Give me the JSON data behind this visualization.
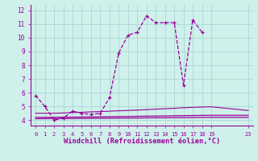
{
  "bg_color": "#cff0eb",
  "grid_color": "#aad8d4",
  "line_color": "#990099",
  "xlabel": "Windchill (Refroidissement éolien,°C)",
  "xlim": [
    -0.5,
    23.5
  ],
  "ylim": [
    3.6,
    12.4
  ],
  "xticks": [
    0,
    1,
    2,
    3,
    4,
    5,
    6,
    7,
    8,
    9,
    10,
    11,
    12,
    13,
    14,
    15,
    16,
    17,
    18,
    19,
    23
  ],
  "yticks": [
    4,
    5,
    6,
    7,
    8,
    9,
    10,
    11,
    12
  ],
  "series_main": {
    "x": [
      0,
      1,
      2,
      3,
      4,
      5,
      6,
      7,
      8,
      9,
      10,
      11,
      12,
      13,
      14,
      15,
      16,
      17,
      18
    ],
    "y": [
      5.8,
      5.0,
      4.0,
      4.15,
      4.65,
      4.5,
      4.4,
      4.5,
      5.65,
      8.9,
      10.2,
      10.4,
      11.6,
      11.1,
      11.1,
      11.1,
      6.55,
      11.3,
      10.4
    ]
  },
  "series_mid": {
    "x": [
      0,
      1,
      2,
      3,
      4,
      5,
      6,
      7,
      8,
      9,
      10,
      11,
      12,
      13,
      14,
      15,
      16,
      17,
      18,
      19,
      23
    ],
    "y": [
      4.5,
      4.5,
      4.5,
      4.52,
      4.55,
      4.57,
      4.6,
      4.62,
      4.65,
      4.68,
      4.7,
      4.73,
      4.76,
      4.8,
      4.83,
      4.86,
      4.9,
      4.93,
      4.95,
      4.97,
      4.7
    ]
  },
  "series_flat1": {
    "x": [
      0,
      5,
      19,
      23
    ],
    "y": [
      4.2,
      4.22,
      4.35,
      4.35
    ]
  },
  "series_flat2": {
    "x": [
      0,
      5,
      19,
      23
    ],
    "y": [
      4.1,
      4.12,
      4.2,
      4.2
    ]
  }
}
